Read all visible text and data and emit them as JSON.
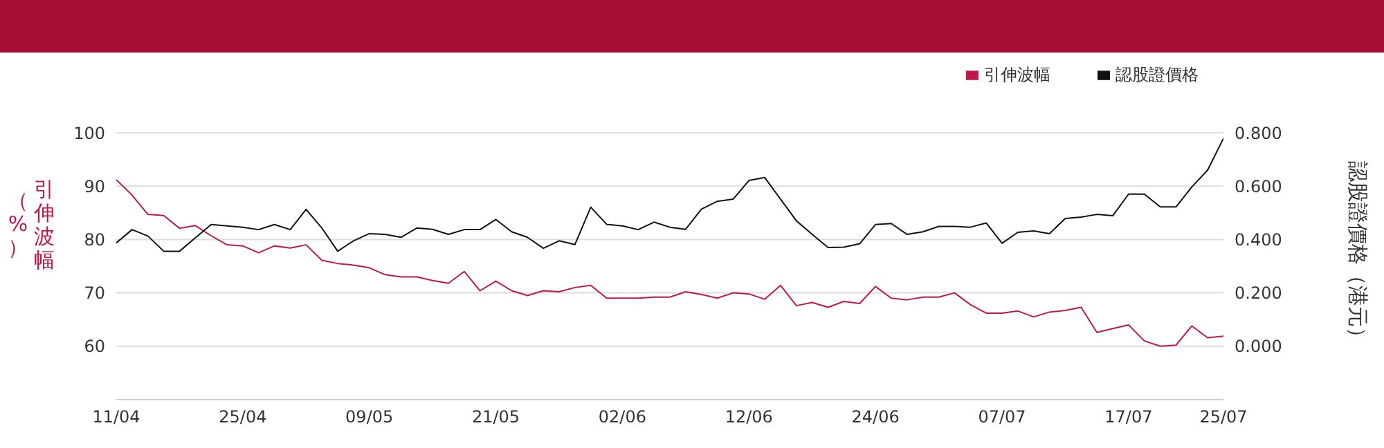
{
  "chart_data": {
    "type": "line",
    "categories": [
      "11/04",
      null,
      null,
      null,
      null,
      null,
      null,
      null,
      "25/04",
      null,
      null,
      null,
      null,
      null,
      null,
      null,
      "09/05",
      null,
      null,
      null,
      null,
      null,
      null,
      null,
      "21/05",
      null,
      null,
      null,
      null,
      null,
      null,
      null,
      "02/06",
      null,
      null,
      null,
      null,
      null,
      null,
      null,
      "12/06",
      null,
      null,
      null,
      null,
      null,
      null,
      null,
      "24/06",
      null,
      null,
      null,
      null,
      null,
      null,
      null,
      "07/07",
      null,
      null,
      null,
      null,
      null,
      null,
      null,
      "17/07",
      null,
      null,
      null,
      null,
      null,
      "25/07"
    ],
    "series": [
      {
        "name": "引伸波幅",
        "color": "#c0174a",
        "values": [
          91.2,
          88.3,
          84.7,
          84.5,
          82.1,
          82.6,
          80.7,
          79.0,
          78.8,
          77.5,
          78.8,
          78.4,
          79.0,
          76.1,
          75.5,
          75.2,
          74.7,
          73.4,
          73.0,
          73.0,
          72.3,
          71.8,
          74.0,
          70.4,
          72.2,
          70.4,
          69.5,
          70.4,
          70.2,
          71.0,
          71.4,
          69.0,
          69.0,
          69.0,
          69.2,
          69.2,
          70.2,
          69.7,
          69.0,
          70.0,
          69.8,
          68.8,
          71.4,
          67.6,
          68.2,
          67.3,
          68.4,
          68.0,
          71.2,
          69.0,
          68.7,
          69.2,
          69.2,
          70.0,
          67.8,
          66.2,
          66.2,
          66.6,
          65.5,
          66.4,
          66.7,
          67.3,
          62.6,
          63.3,
          64.0,
          61.0,
          60.0,
          60.2,
          63.8,
          61.6,
          61.9
        ]
      },
      {
        "name": "認股證價格",
        "color": "#111111",
        "axis": "y2",
        "values": [
          0.387,
          0.437,
          0.413,
          0.356,
          0.356,
          0.406,
          0.456,
          0.451,
          0.446,
          0.437,
          0.456,
          0.437,
          0.513,
          0.443,
          0.356,
          0.395,
          0.422,
          0.419,
          0.408,
          0.443,
          0.438,
          0.419,
          0.437,
          0.437,
          0.475,
          0.429,
          0.408,
          0.367,
          0.395,
          0.381,
          0.521,
          0.457,
          0.451,
          0.437,
          0.465,
          0.446,
          0.438,
          0.514,
          0.543,
          0.551,
          0.621,
          0.632,
          0.551,
          0.47,
          0.419,
          0.37,
          0.371,
          0.384,
          0.456,
          0.46,
          0.419,
          0.429,
          0.449,
          0.449,
          0.446,
          0.462,
          0.386,
          0.427,
          0.432,
          0.422,
          0.479,
          0.484,
          0.494,
          0.489,
          0.57,
          0.57,
          0.522,
          0.522,
          0.597,
          0.66,
          0.779
        ]
      }
    ],
    "ylabel": "引伸波幅（%）",
    "y2label": "認股證價格（港元）",
    "ylim": [
      50,
      100
    ],
    "yticks": [
      60,
      70,
      80,
      90,
      100
    ],
    "y2lim": [
      -0.2,
      0.8
    ],
    "y2ticks": [
      {
        "value": 0,
        "label": "0.000"
      },
      {
        "value": 0.2,
        "label": "0.200"
      },
      {
        "value": 0.4,
        "label": "0.400"
      },
      {
        "value": 0.6,
        "label": "0.600"
      },
      {
        "value": 0.8,
        "label": "0.800"
      }
    ],
    "grid": "y",
    "legend": "top right",
    "marker": "none",
    "line_style": "solid"
  }
}
